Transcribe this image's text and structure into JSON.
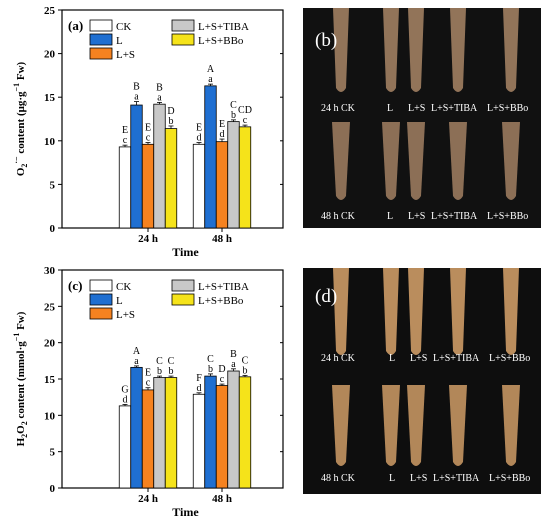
{
  "chart_data": [
    {
      "type": "bar",
      "panel_label": "(a)",
      "categories": [
        "24 h",
        "48 h"
      ],
      "xlabel": "Time",
      "ylabel": "O2·− content (μg·g−1 Fw)",
      "ylim": [
        0,
        25
      ],
      "yticks": [
        0,
        5,
        10,
        15,
        20,
        25
      ],
      "legend_position": "top",
      "series": [
        {
          "name": "CK",
          "color": "#ffffff",
          "values": [
            9.3,
            9.6
          ],
          "errors": [
            0.2,
            0.2
          ],
          "upper": [
            "E",
            "E"
          ],
          "lower": [
            "c",
            "d"
          ]
        },
        {
          "name": "L",
          "color": "#1f6fd1",
          "values": [
            14.1,
            16.3
          ],
          "errors": [
            0.4,
            0.2
          ],
          "upper": [
            "B",
            "A"
          ],
          "lower": [
            "a",
            "a"
          ]
        },
        {
          "name": "L+S",
          "color": "#f58220",
          "values": [
            9.6,
            9.9
          ],
          "errors": [
            0.2,
            0.3
          ],
          "upper": [
            "E",
            "E"
          ],
          "lower": [
            "c",
            "d"
          ]
        },
        {
          "name": "L+S+TIBA",
          "color": "#c8c8c8",
          "values": [
            14.2,
            12.2
          ],
          "errors": [
            0.2,
            0.2
          ],
          "upper": [
            "B",
            "C"
          ],
          "lower": [
            "a",
            "b"
          ]
        },
        {
          "name": "L+S+BBo",
          "color": "#f5e31a",
          "values": [
            11.4,
            11.6
          ],
          "errors": [
            0.3,
            0.2
          ],
          "upper": [
            "D",
            "CD"
          ],
          "lower": [
            "b",
            "c"
          ]
        }
      ]
    },
    {
      "type": "bar",
      "panel_label": "(c)",
      "categories": [
        "24 h",
        "48 h"
      ],
      "xlabel": "Time",
      "ylabel": "H2O2 content (mmol·g−1 Fw)",
      "ylim": [
        0,
        30
      ],
      "yticks": [
        0,
        5,
        10,
        15,
        20,
        25,
        30
      ],
      "legend_position": "top",
      "series": [
        {
          "name": "CK",
          "color": "#ffffff",
          "values": [
            11.3,
            12.9
          ],
          "errors": [
            0.2,
            0.2
          ],
          "upper": [
            "G",
            "F"
          ],
          "lower": [
            "d",
            "d"
          ]
        },
        {
          "name": "L",
          "color": "#1f6fd1",
          "values": [
            16.6,
            15.4
          ],
          "errors": [
            0.2,
            0.3
          ],
          "upper": [
            "A",
            "C"
          ],
          "lower": [
            "a",
            "b"
          ]
        },
        {
          "name": "L+S",
          "color": "#f58220",
          "values": [
            13.5,
            14.1
          ],
          "errors": [
            0.3,
            0.2
          ],
          "upper": [
            "E",
            "D"
          ],
          "lower": [
            "c",
            "c"
          ]
        },
        {
          "name": "L+S+TIBA",
          "color": "#c8c8c8",
          "values": [
            15.2,
            16.1
          ],
          "errors": [
            0.2,
            0.3
          ],
          "upper": [
            "C",
            "B"
          ],
          "lower": [
            "b",
            "a"
          ]
        },
        {
          "name": "L+S+BBo",
          "color": "#f5e31a",
          "values": [
            15.2,
            15.3
          ],
          "errors": [
            0.2,
            0.2
          ],
          "upper": [
            "C",
            "C"
          ],
          "lower": [
            "b",
            "b"
          ]
        }
      ]
    }
  ],
  "photos": [
    {
      "panel_label": "(b)",
      "background": "#111111",
      "root_color": "#9a7a5e",
      "labels_top": [
        "24 h  CK",
        "L",
        "L+S",
        "L+S+TIBA",
        "L+S+BBo"
      ],
      "labels_bottom": [
        "48 h  CK",
        "L",
        "L+S",
        "L+S+TIBA",
        "L+S+BBo"
      ]
    },
    {
      "panel_label": "(d)",
      "background": "#0e0e0e",
      "root_color": "#c49562",
      "labels_top": [
        "24 h  CK",
        "L",
        "L+S",
        "L+S+TIBA",
        "L+S+BBo"
      ],
      "labels_bottom": [
        "48 h  CK",
        "L",
        "L+S",
        "L+S+TIBA",
        "L+S+BBo"
      ]
    }
  ]
}
